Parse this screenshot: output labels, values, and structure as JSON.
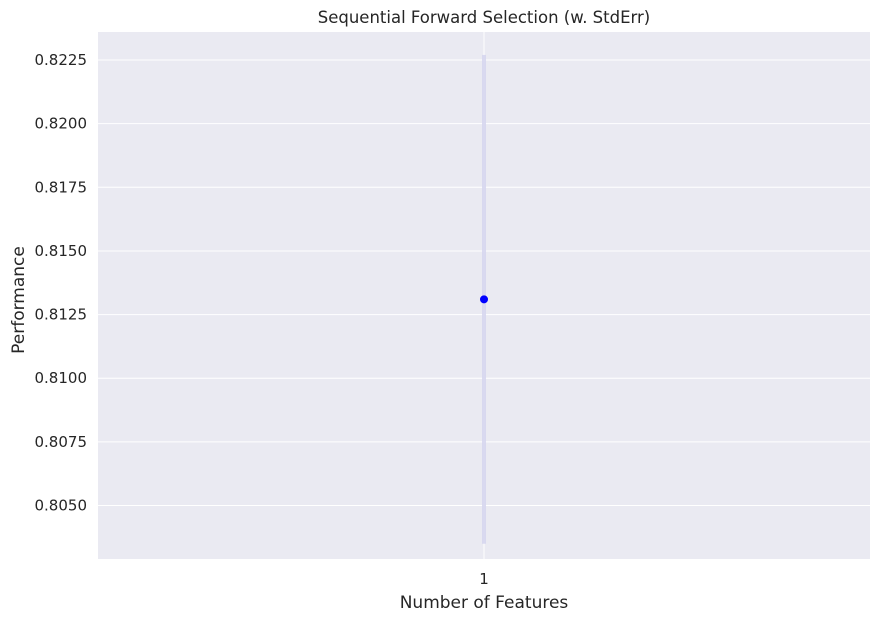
{
  "chart_data": {
    "type": "scatter",
    "title": "Sequential Forward Selection (w. StdErr)",
    "xlabel": "Number of Features",
    "ylabel": "Performance",
    "x_ticks": [
      "1"
    ],
    "y_ticks": [
      "0.8050",
      "0.8075",
      "0.8100",
      "0.8125",
      "0.8150",
      "0.8175",
      "0.8200",
      "0.8225"
    ],
    "ylim": [
      0.8029,
      0.8236
    ],
    "xlim": [
      0.5,
      1.5
    ],
    "grid": true,
    "series": [
      {
        "x": [
          1
        ],
        "y": [
          0.8131
        ],
        "error_low": [
          0.8035
        ],
        "error_high": [
          0.8227
        ],
        "color": "#0000ff"
      }
    ]
  },
  "colors": {
    "plot_background": "#eaeaf2",
    "grid": "#ffffff",
    "marker": "#0000ff",
    "error_band": "#d6d6ee"
  }
}
